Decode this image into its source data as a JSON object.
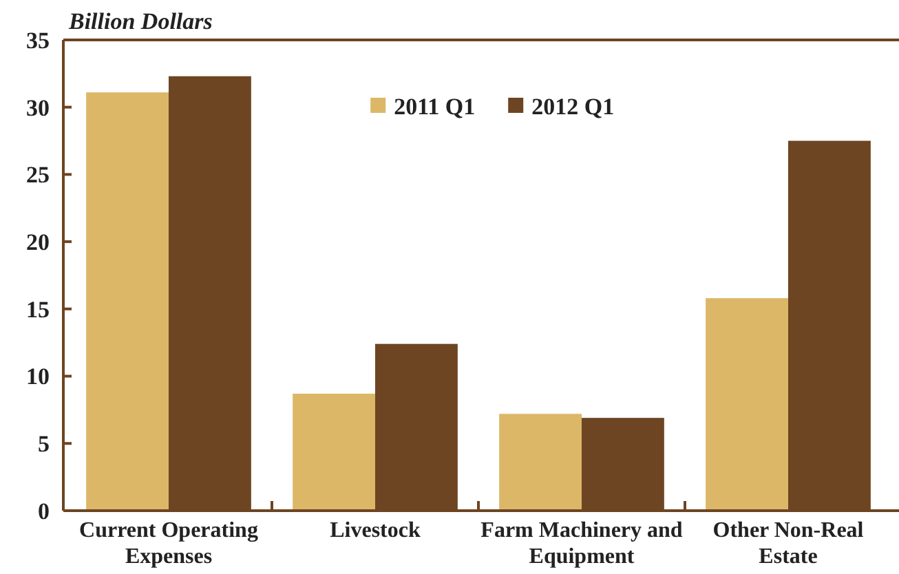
{
  "chart_data": {
    "type": "bar",
    "ylabel": "Billion Dollars",
    "categories": [
      "Current Operating Expenses",
      "Livestock",
      "Farm Machinery and Equipment",
      "Other Non-Real Estate"
    ],
    "series": [
      {
        "name": "2011 Q1",
        "color": "#dcb767",
        "values": [
          31.1,
          8.7,
          7.2,
          15.8
        ]
      },
      {
        "name": "2012 Q1",
        "color": "#6d4522",
        "values": [
          32.3,
          12.4,
          6.9,
          27.5
        ]
      }
    ],
    "ylim": [
      0,
      35
    ],
    "yticks": [
      0,
      5,
      10,
      15,
      20,
      25,
      30,
      35
    ],
    "grid": false,
    "legend": "top"
  }
}
